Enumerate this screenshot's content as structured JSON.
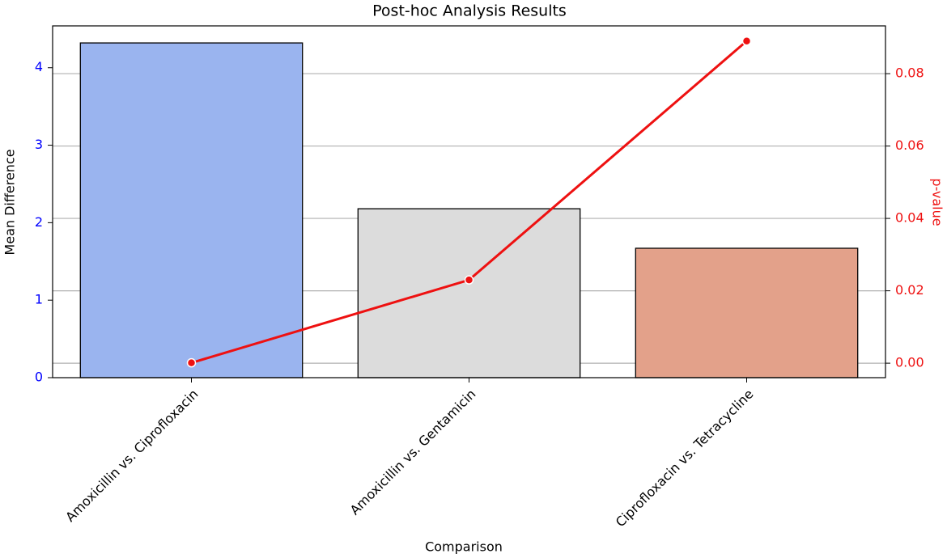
{
  "chart_data": {
    "type": "bar_line",
    "title": "Post-hoc Analysis Results",
    "x_label": "Comparison",
    "y_label": "Mean Difference",
    "y2_label": "p-value",
    "categories": [
      "Amoxicillin vs. Ciprofloxacin",
      "Amoxicillin vs. Gentamicin",
      "Ciprofloxacin vs. Tetracycline"
    ],
    "series": [
      {
        "name": "Mean Difference",
        "type": "bar",
        "colors": [
          "#9ab4ef",
          "#dcdcdc",
          "#e3a18a"
        ],
        "values": [
          4.32,
          2.18,
          1.67
        ]
      },
      {
        "name": "p-value",
        "type": "line",
        "axis": "y2",
        "color": "#ee1111",
        "values": [
          0.0001,
          0.023,
          0.089
        ]
      }
    ],
    "ylim": [
      0,
      4.54
    ],
    "yticks": [
      0,
      1,
      2,
      3,
      4
    ],
    "y_color": "#0000ff",
    "y2lim": [
      -0.004,
      0.0932
    ],
    "y2ticks": [
      {
        "value": 0,
        "label": "0.00"
      },
      {
        "value": 0.02,
        "label": "0.02"
      },
      {
        "value": 0.04,
        "label": "0.04"
      },
      {
        "value": 0.06,
        "label": "0.06"
      },
      {
        "value": 0.08,
        "label": "0.08"
      }
    ],
    "y2_color": "#ee1111",
    "grid": "y2"
  }
}
